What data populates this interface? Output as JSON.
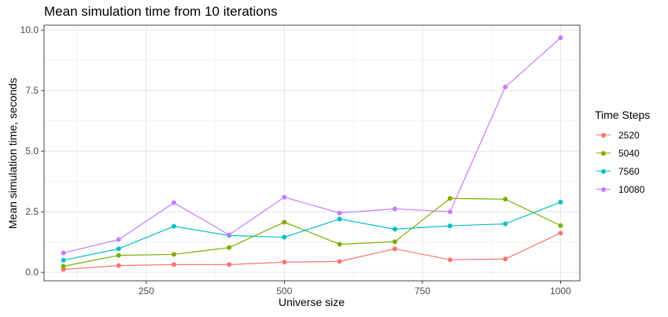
{
  "chart_data": {
    "type": "line",
    "title": "Mean simulation time from 10 iterations",
    "xlabel": "Universe size",
    "ylabel": "Mean simulation time, seconds",
    "xlim": [
      65,
      1035
    ],
    "ylim": [
      -0.35,
      10.2
    ],
    "x_ticks": [
      250,
      500,
      750,
      1000
    ],
    "x_tick_labels": [
      "250",
      "500",
      "750",
      "1000"
    ],
    "x_minor_ticks": [
      125,
      375,
      625,
      875
    ],
    "y_ticks": [
      0,
      2.5,
      5,
      7.5,
      10
    ],
    "y_tick_labels": [
      "0.0",
      "2.5",
      "5.0",
      "7.5",
      "10.0"
    ],
    "y_minor_ticks": [
      1.25,
      3.75,
      6.25,
      8.75
    ],
    "grid": true,
    "legend_position": "right",
    "legend_title": "Time Steps",
    "x": [
      100,
      200,
      300,
      400,
      500,
      600,
      700,
      800,
      900,
      1000
    ],
    "series": [
      {
        "name": "2520",
        "color": "#F8766D",
        "values": [
          0.12,
          0.28,
          0.32,
          0.32,
          0.42,
          0.45,
          0.97,
          0.52,
          0.55,
          1.62
        ]
      },
      {
        "name": "5040",
        "color": "#7CAE00",
        "values": [
          0.25,
          0.7,
          0.74,
          1.02,
          2.07,
          1.16,
          1.26,
          3.05,
          3.02,
          1.93
        ]
      },
      {
        "name": "7560",
        "color": "#00BFC4",
        "values": [
          0.5,
          0.97,
          1.9,
          1.52,
          1.45,
          2.2,
          1.78,
          1.92,
          2.0,
          2.9
        ]
      },
      {
        "name": "10080",
        "color": "#C77CFF",
        "values": [
          0.8,
          1.35,
          2.87,
          1.55,
          3.1,
          2.45,
          2.62,
          2.5,
          7.65,
          9.68
        ]
      }
    ]
  }
}
